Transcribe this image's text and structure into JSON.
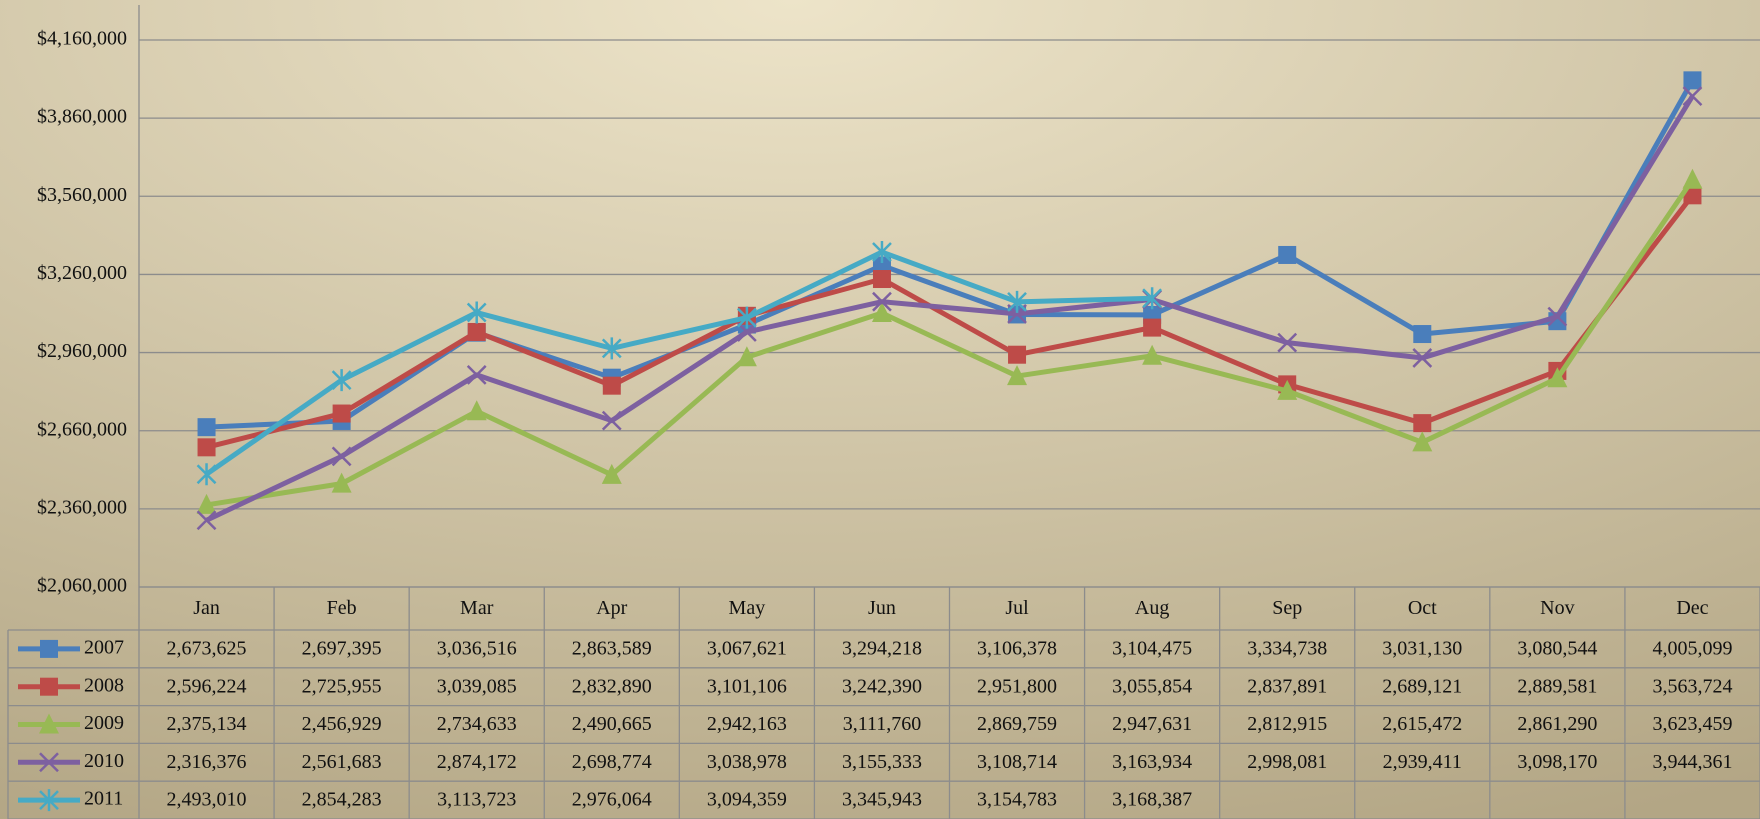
{
  "chart_data": {
    "type": "line",
    "categories": [
      "Jan",
      "Feb",
      "Mar",
      "Apr",
      "May",
      "Jun",
      "Jul",
      "Aug",
      "Sep",
      "Oct",
      "Nov",
      "Dec"
    ],
    "ylim": [
      2060000,
      4160000
    ],
    "yticks": [
      {
        "value": 2060000,
        "label": "$2,060,000"
      },
      {
        "value": 2360000,
        "label": "$2,360,000"
      },
      {
        "value": 2660000,
        "label": "$2,660,000"
      },
      {
        "value": 2960000,
        "label": "$2,960,000"
      },
      {
        "value": 3260000,
        "label": "$3,260,000"
      },
      {
        "value": 3560000,
        "label": "$3,560,000"
      },
      {
        "value": 3860000,
        "label": "$3,860,000"
      },
      {
        "value": 4160000,
        "label": "$4,160,000"
      }
    ],
    "grid": true,
    "series": [
      {
        "name": "2007",
        "color": "#4a7ebb",
        "marker": "square",
        "values": [
          2673625,
          2697395,
          3036516,
          2863589,
          3067621,
          3294218,
          3106378,
          3104475,
          3334738,
          3031130,
          3080544,
          4005099
        ],
        "value_labels": [
          "2,673,625",
          "2,697,395",
          "3,036,516",
          "2,863,589",
          "3,067,621",
          "3,294,218",
          "3,106,378",
          "3,104,475",
          "3,334,738",
          "3,031,130",
          "3,080,544",
          "4,005,099"
        ]
      },
      {
        "name": "2008",
        "color": "#be4b48",
        "marker": "square",
        "values": [
          2596224,
          2725955,
          3039085,
          2832890,
          3101106,
          3242390,
          2951800,
          3055854,
          2837891,
          2689121,
          2889581,
          3563724
        ],
        "value_labels": [
          "2,596,224",
          "2,725,955",
          "3,039,085",
          "2,832,890",
          "3,101,106",
          "3,242,390",
          "2,951,800",
          "3,055,854",
          "2,837,891",
          "2,689,121",
          "2,889,581",
          "3,563,724"
        ]
      },
      {
        "name": "2009",
        "color": "#98b954",
        "marker": "triangle",
        "values": [
          2375134,
          2456929,
          2734633,
          2490665,
          2942163,
          3111760,
          2869759,
          2947631,
          2812915,
          2615472,
          2861290,
          3623459
        ],
        "value_labels": [
          "2,375,134",
          "2,456,929",
          "2,734,633",
          "2,490,665",
          "2,942,163",
          "3,111,760",
          "2,869,759",
          "2,947,631",
          "2,812,915",
          "2,615,472",
          "2,861,290",
          "3,623,459"
        ]
      },
      {
        "name": "2010",
        "color": "#7d60a0",
        "marker": "x",
        "values": [
          2316376,
          2561683,
          2874172,
          2698774,
          3038978,
          3155333,
          3108714,
          3163934,
          2998081,
          2939411,
          3098170,
          3944361
        ],
        "value_labels": [
          "2,316,376",
          "2,561,683",
          "2,874,172",
          "2,698,774",
          "3,038,978",
          "3,155,333",
          "3,108,714",
          "3,163,934",
          "2,998,081",
          "2,939,411",
          "3,098,170",
          "3,944,361"
        ]
      },
      {
        "name": "2011",
        "color": "#46aac5",
        "marker": "star",
        "values": [
          2493010,
          2854283,
          3113723,
          2976064,
          3094359,
          3345943,
          3154783,
          3168387,
          null,
          null,
          null,
          null
        ],
        "value_labels": [
          "2,493,010",
          "2,854,283",
          "3,113,723",
          "2,976,064",
          "3,094,359",
          "3,345,943",
          "3,154,783",
          "3,168,387",
          null,
          null,
          null,
          null
        ]
      }
    ]
  }
}
